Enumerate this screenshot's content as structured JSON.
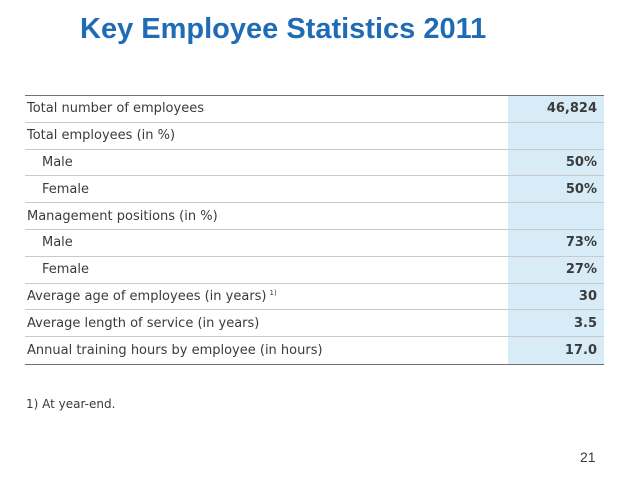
{
  "slide": {
    "title": "Key Employee Statistics 2011",
    "page_number": "21"
  },
  "table": {
    "rows": [
      {
        "label": "Total number of employees",
        "value": "46,824",
        "indent": false
      },
      {
        "label": "Total employees (in %)",
        "value": "",
        "indent": false
      },
      {
        "label": "Male",
        "value": "50%",
        "indent": true
      },
      {
        "label": "Female",
        "value": "50%",
        "indent": true
      },
      {
        "label": "Management positions (in %)",
        "value": "",
        "indent": false
      },
      {
        "label": "Male",
        "value": "73%",
        "indent": true
      },
      {
        "label": "Female",
        "value": "27%",
        "indent": true
      },
      {
        "label": "Average age of employees (in years)",
        "value": "30",
        "indent": false,
        "note": "1)"
      },
      {
        "label": "Average length of service (in years)",
        "value": "3.5",
        "indent": false
      },
      {
        "label": "Annual training hours by employee (in hours)",
        "value": "17.0",
        "indent": false
      }
    ],
    "footnote": "1) At year-end."
  },
  "colors": {
    "title": "#1f6bb6",
    "value_column_bg": "#d8ecf8",
    "text": "#3b3b3b"
  }
}
